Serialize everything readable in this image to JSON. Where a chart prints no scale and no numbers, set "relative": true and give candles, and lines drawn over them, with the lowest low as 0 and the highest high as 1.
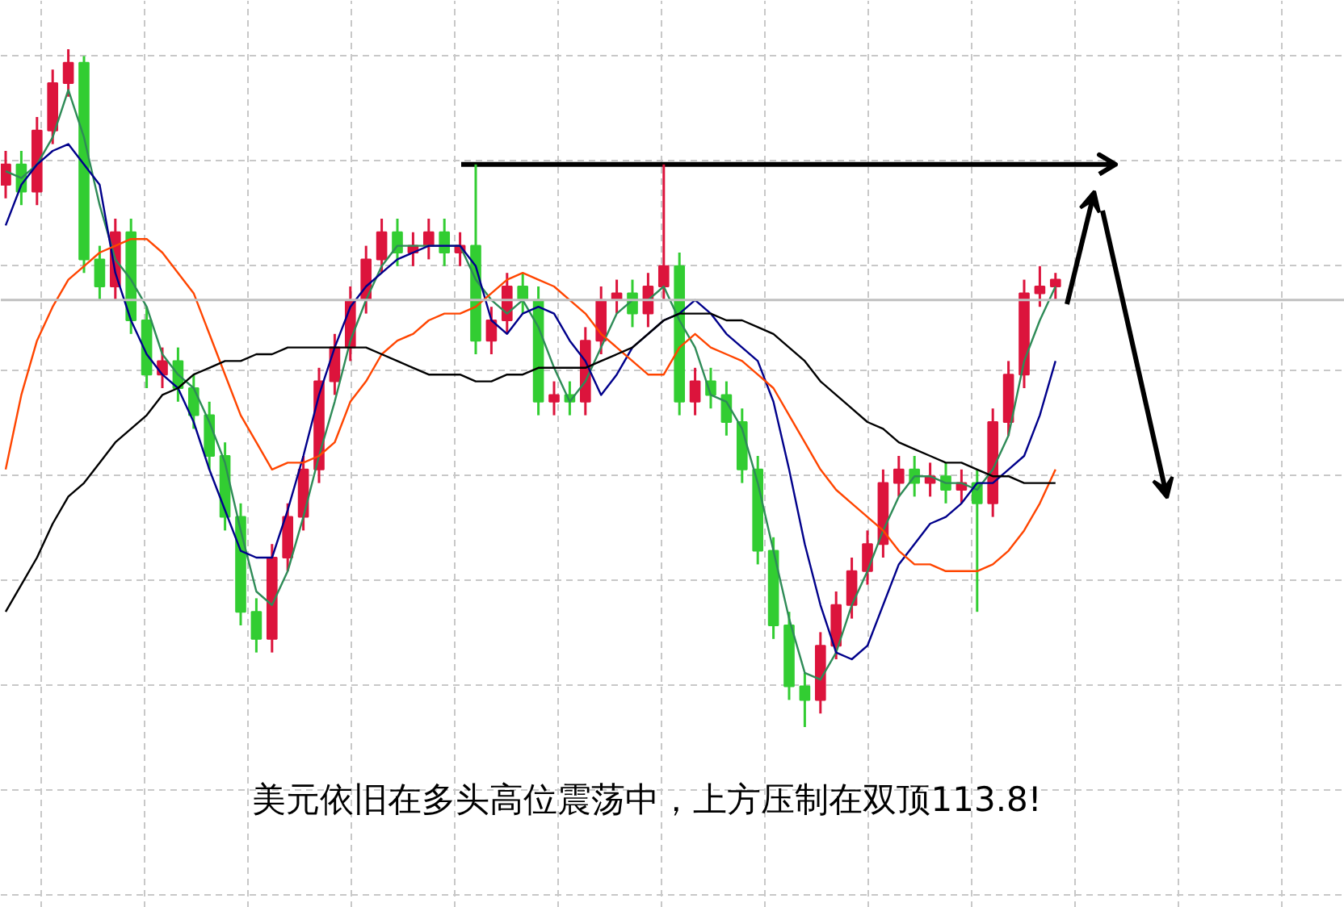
{
  "chart_data": {
    "type": "candlestick",
    "relative": true,
    "grid": true,
    "categories": [
      null,
      null,
      null,
      null,
      null,
      null,
      null,
      null,
      null,
      null,
      null,
      null,
      null,
      null,
      null,
      null,
      null,
      null,
      null,
      null,
      null,
      null,
      null,
      null,
      null,
      null,
      null,
      null,
      null,
      null,
      null,
      null,
      null,
      null,
      null,
      null,
      null,
      null,
      null,
      null,
      null,
      null,
      null,
      null,
      null,
      null,
      null,
      null,
      null,
      null,
      null,
      null,
      null,
      null,
      null,
      null,
      null,
      null,
      null,
      null,
      null,
      null,
      null,
      null,
      null,
      null,
      null,
      null
    ],
    "ohlc": [
      [
        0.8,
        0.85,
        0.78,
        0.83
      ],
      [
        0.83,
        0.85,
        0.77,
        0.79
      ],
      [
        0.79,
        0.9,
        0.77,
        0.88
      ],
      [
        0.88,
        0.97,
        0.86,
        0.95
      ],
      [
        0.95,
        1.0,
        0.93,
        0.98
      ],
      [
        0.98,
        0.99,
        0.67,
        0.69
      ],
      [
        0.69,
        0.71,
        0.63,
        0.65
      ],
      [
        0.65,
        0.75,
        0.63,
        0.73
      ],
      [
        0.73,
        0.75,
        0.58,
        0.6
      ],
      [
        0.6,
        0.62,
        0.5,
        0.52
      ],
      [
        0.52,
        0.56,
        0.5,
        0.54
      ],
      [
        0.54,
        0.56,
        0.48,
        0.5
      ],
      [
        0.5,
        0.52,
        0.44,
        0.46
      ],
      [
        0.46,
        0.48,
        0.38,
        0.4
      ],
      [
        0.4,
        0.42,
        0.29,
        0.31
      ],
      [
        0.31,
        0.33,
        0.15,
        0.17
      ],
      [
        0.17,
        0.19,
        0.11,
        0.13
      ],
      [
        0.13,
        0.27,
        0.11,
        0.25
      ],
      [
        0.25,
        0.33,
        0.23,
        0.31
      ],
      [
        0.31,
        0.4,
        0.29,
        0.38
      ],
      [
        0.38,
        0.53,
        0.36,
        0.51
      ],
      [
        0.51,
        0.58,
        0.49,
        0.56
      ],
      [
        0.56,
        0.65,
        0.54,
        0.63
      ],
      [
        0.63,
        0.71,
        0.61,
        0.69
      ],
      [
        0.69,
        0.75,
        0.67,
        0.73
      ],
      [
        0.73,
        0.75,
        0.68,
        0.7
      ],
      [
        0.7,
        0.73,
        0.68,
        0.71
      ],
      [
        0.71,
        0.75,
        0.69,
        0.73
      ],
      [
        0.73,
        0.75,
        0.68,
        0.7
      ],
      [
        0.7,
        0.73,
        0.68,
        0.71
      ],
      [
        0.71,
        0.83,
        0.55,
        0.57
      ],
      [
        0.57,
        0.62,
        0.55,
        0.6
      ],
      [
        0.6,
        0.67,
        0.58,
        0.65
      ],
      [
        0.65,
        0.67,
        0.61,
        0.63
      ],
      [
        0.63,
        0.65,
        0.46,
        0.48
      ],
      [
        0.48,
        0.51,
        0.46,
        0.49
      ],
      [
        0.49,
        0.51,
        0.46,
        0.48
      ],
      [
        0.48,
        0.59,
        0.46,
        0.57
      ],
      [
        0.57,
        0.65,
        0.55,
        0.63
      ],
      [
        0.63,
        0.66,
        0.61,
        0.64
      ],
      [
        0.64,
        0.66,
        0.59,
        0.61
      ],
      [
        0.61,
        0.67,
        0.59,
        0.65
      ],
      [
        0.65,
        0.83,
        0.63,
        0.68
      ],
      [
        0.68,
        0.7,
        0.46,
        0.48
      ],
      [
        0.48,
        0.53,
        0.46,
        0.51
      ],
      [
        0.51,
        0.53,
        0.47,
        0.49
      ],
      [
        0.49,
        0.51,
        0.43,
        0.45
      ],
      [
        0.45,
        0.47,
        0.36,
        0.38
      ],
      [
        0.38,
        0.4,
        0.24,
        0.26
      ],
      [
        0.26,
        0.28,
        0.13,
        0.15
      ],
      [
        0.15,
        0.17,
        0.04,
        0.06
      ],
      [
        0.06,
        0.08,
        0.0,
        0.04
      ],
      [
        0.04,
        0.14,
        0.02,
        0.12
      ],
      [
        0.12,
        0.2,
        0.1,
        0.18
      ],
      [
        0.18,
        0.25,
        0.16,
        0.23
      ],
      [
        0.23,
        0.29,
        0.21,
        0.27
      ],
      [
        0.27,
        0.38,
        0.25,
        0.36
      ],
      [
        0.36,
        0.4,
        0.34,
        0.38
      ],
      [
        0.38,
        0.4,
        0.34,
        0.36
      ],
      [
        0.36,
        0.39,
        0.34,
        0.37
      ],
      [
        0.37,
        0.39,
        0.33,
        0.35
      ],
      [
        0.35,
        0.38,
        0.33,
        0.36
      ],
      [
        0.36,
        0.38,
        0.17,
        0.33
      ],
      [
        0.33,
        0.47,
        0.31,
        0.45
      ],
      [
        0.45,
        0.54,
        0.43,
        0.52
      ],
      [
        0.52,
        0.66,
        0.5,
        0.64
      ],
      [
        0.64,
        0.68,
        0.62,
        0.65
      ],
      [
        0.65,
        0.67,
        0.63,
        0.66
      ]
    ],
    "colors": [
      "#dc143c",
      "#32cd32",
      "#dc143c",
      "#dc143c",
      "#dc143c",
      "#32cd32",
      "#32cd32",
      "#dc143c",
      "#32cd32",
      "#32cd32",
      "#dc143c",
      "#32cd32",
      "#32cd32",
      "#32cd32",
      "#32cd32",
      "#32cd32",
      "#32cd32",
      "#dc143c",
      "#dc143c",
      "#dc143c",
      "#dc143c",
      "#dc143c",
      "#dc143c",
      "#dc143c",
      "#dc143c",
      "#32cd32",
      "#dc143c",
      "#dc143c",
      "#32cd32",
      "#dc143c",
      "#32cd32",
      "#dc143c",
      "#dc143c",
      "#32cd32",
      "#32cd32",
      "#dc143c",
      "#32cd32",
      "#dc143c",
      "#dc143c",
      "#dc143c",
      "#32cd32",
      "#dc143c",
      "#dc143c",
      "#32cd32",
      "#dc143c",
      "#32cd32",
      "#32cd32",
      "#32cd32",
      "#32cd32",
      "#32cd32",
      "#32cd32",
      "#32cd32",
      "#dc143c",
      "#dc143c",
      "#dc143c",
      "#dc143c",
      "#dc143c",
      "#dc143c",
      "#32cd32",
      "#dc143c",
      "#32cd32",
      "#dc143c",
      "#32cd32",
      "#dc143c",
      "#dc143c",
      "#dc143c",
      "#dc143c",
      "#dc143c"
    ],
    "series": [
      {
        "type": "line",
        "color": "#2e8b57",
        "values": [
          0.82,
          0.81,
          0.83,
          0.87,
          0.94,
          0.87,
          0.77,
          0.69,
          0.66,
          0.62,
          0.55,
          0.52,
          0.5,
          0.45,
          0.39,
          0.29,
          0.2,
          0.18,
          0.23,
          0.31,
          0.4,
          0.48,
          0.57,
          0.63,
          0.68,
          0.71,
          0.71,
          0.71,
          0.71,
          0.71,
          0.66,
          0.63,
          0.61,
          0.63,
          0.59,
          0.53,
          0.48,
          0.51,
          0.56,
          0.61,
          0.63,
          0.63,
          0.65,
          0.6,
          0.56,
          0.49,
          0.48,
          0.44,
          0.36,
          0.26,
          0.16,
          0.08,
          0.07,
          0.11,
          0.18,
          0.23,
          0.29,
          0.34,
          0.37,
          0.37,
          0.36,
          0.36,
          0.35,
          0.38,
          0.43,
          0.54,
          0.6,
          0.65
        ]
      },
      {
        "type": "line",
        "color": "#00008b",
        "values": [
          0.74,
          0.8,
          0.83,
          0.85,
          0.86,
          0.83,
          0.8,
          0.67,
          0.6,
          0.55,
          0.52,
          0.5,
          0.45,
          0.38,
          0.32,
          0.26,
          0.25,
          0.25,
          0.32,
          0.4,
          0.49,
          0.56,
          0.62,
          0.65,
          0.67,
          0.69,
          0.7,
          0.71,
          0.71,
          0.71,
          0.68,
          0.6,
          0.58,
          0.61,
          0.62,
          0.61,
          0.57,
          0.54,
          0.49,
          0.52,
          0.56,
          0.58,
          0.6,
          0.61,
          0.63,
          0.61,
          0.58,
          0.56,
          0.54,
          0.48,
          0.38,
          0.27,
          0.18,
          0.11,
          0.1,
          0.12,
          0.18,
          0.24,
          0.27,
          0.3,
          0.31,
          0.33,
          0.36,
          0.36,
          0.38,
          0.4,
          0.46,
          0.54
        ]
      },
      {
        "type": "line",
        "color": "#ff4500",
        "values": [
          0.38,
          0.49,
          0.57,
          0.62,
          0.66,
          0.68,
          0.7,
          0.71,
          0.72,
          0.72,
          0.7,
          0.67,
          0.64,
          0.58,
          0.52,
          0.46,
          0.42,
          0.38,
          0.39,
          0.39,
          0.4,
          0.42,
          0.48,
          0.51,
          0.55,
          0.57,
          0.58,
          0.6,
          0.61,
          0.61,
          0.62,
          0.64,
          0.66,
          0.67,
          0.66,
          0.65,
          0.63,
          0.61,
          0.58,
          0.56,
          0.54,
          0.52,
          0.52,
          0.56,
          0.58,
          0.56,
          0.55,
          0.54,
          0.52,
          0.5,
          0.46,
          0.42,
          0.38,
          0.35,
          0.33,
          0.31,
          0.29,
          0.26,
          0.24,
          0.24,
          0.23,
          0.23,
          0.23,
          0.24,
          0.26,
          0.29,
          0.33,
          0.38
        ]
      },
      {
        "type": "line",
        "color": "#000000",
        "values": [
          0.17,
          0.21,
          0.25,
          0.3,
          0.34,
          0.36,
          0.39,
          0.42,
          0.44,
          0.46,
          0.49,
          0.5,
          0.52,
          0.53,
          0.54,
          0.54,
          0.55,
          0.55,
          0.56,
          0.56,
          0.56,
          0.56,
          0.56,
          0.56,
          0.55,
          0.54,
          0.53,
          0.52,
          0.52,
          0.52,
          0.51,
          0.51,
          0.52,
          0.52,
          0.53,
          0.53,
          0.53,
          0.53,
          0.54,
          0.55,
          0.56,
          0.58,
          0.6,
          0.61,
          0.61,
          0.61,
          0.6,
          0.6,
          0.59,
          0.58,
          0.56,
          0.54,
          0.51,
          0.49,
          0.47,
          0.45,
          0.44,
          0.42,
          0.41,
          0.4,
          0.39,
          0.39,
          0.38,
          0.37,
          0.37,
          0.36,
          0.36,
          0.36
        ]
      }
    ],
    "ref_lines": [
      {
        "axis": "y",
        "value": 0.63,
        "color": "#c0c0c0"
      },
      {
        "axis": "y",
        "value": 0.83,
        "color": "#000000"
      }
    ],
    "annotations": [
      "美元依旧在多头高位震荡中，上方压制在双顶113.8!"
    ]
  }
}
